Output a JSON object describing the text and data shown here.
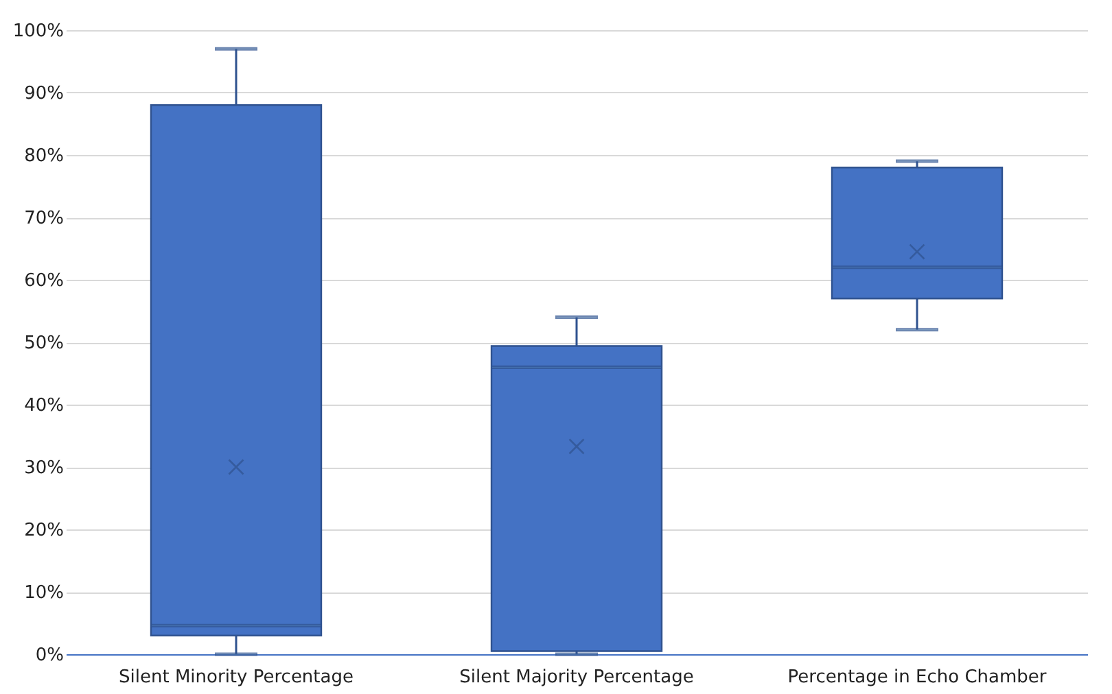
{
  "chart_data": {
    "type": "box",
    "categories": [
      "Silent Minority Percentage",
      "Silent Majority Percentage",
      "Percentage in Echo Chamber"
    ],
    "series": [
      {
        "color": "#4472c4",
        "boxes": [
          {
            "low": 0,
            "q1": 3,
            "median": 4.6,
            "q3": 88,
            "high": 97,
            "mean": 30
          },
          {
            "low": 0,
            "q1": 0.5,
            "median": 46,
            "q3": 49.4,
            "high": 54,
            "mean": 33.3
          },
          {
            "low": 52,
            "q1": 57,
            "median": 62,
            "q3": 78,
            "high": 79,
            "mean": 64.5
          }
        ]
      }
    ],
    "ylim": [
      0,
      100
    ],
    "yticks": [
      {
        "value": 0,
        "label": "0%"
      },
      {
        "value": 10,
        "label": "10%"
      },
      {
        "value": 20,
        "label": "20%"
      },
      {
        "value": 30,
        "label": "30%"
      },
      {
        "value": 40,
        "label": "40%"
      },
      {
        "value": 50,
        "label": "50%"
      },
      {
        "value": 60,
        "label": "60%"
      },
      {
        "value": 70,
        "label": "70%"
      },
      {
        "value": 80,
        "label": "80%"
      },
      {
        "value": 90,
        "label": "90%"
      },
      {
        "value": 100,
        "label": "100%"
      }
    ],
    "grid": "y",
    "marker": "cross"
  }
}
